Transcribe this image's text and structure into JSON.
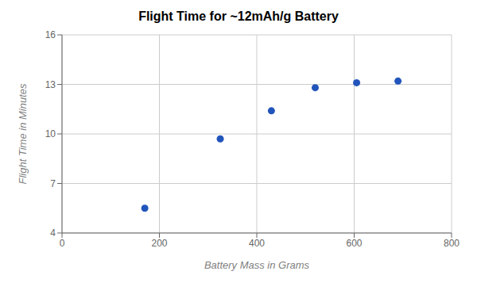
{
  "chart_data": {
    "type": "scatter",
    "title": "Flight Time for ~12mAh/g Battery",
    "xlabel": "Battery Mass in Grams",
    "ylabel": "Flight Time in Minutes",
    "x": [
      170,
      325,
      430,
      520,
      605,
      690
    ],
    "values": [
      5.5,
      9.7,
      11.4,
      12.8,
      13.1,
      13.2
    ],
    "color": "#2255BB",
    "xlim": [
      0,
      800
    ],
    "ylim": [
      4,
      16
    ],
    "xticks": [
      0,
      200,
      400,
      600,
      800
    ],
    "yticks": [
      4,
      7,
      10,
      13,
      16
    ],
    "grid": true
  }
}
